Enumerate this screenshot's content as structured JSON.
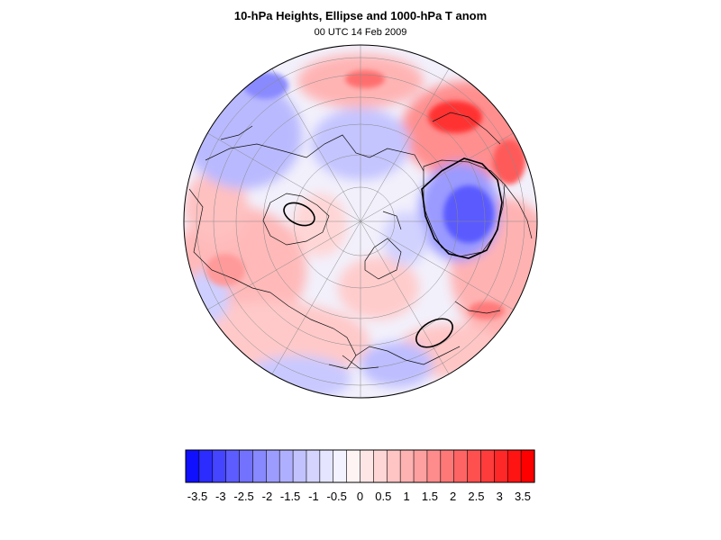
{
  "figure": {
    "title": "10-hPa Heights, Ellipse and 1000-hPa T anom",
    "subtitle": "00 UTC 14 Feb 2009"
  },
  "map": {
    "projection": "orthographic-polar",
    "hemisphere": "north",
    "field": "1000-hPa T anom",
    "features": [
      "temperature-anomaly-shading",
      "coastlines",
      "lat-lon-grid",
      "ellipse-contours"
    ]
  },
  "colorbar": {
    "levels": [
      -3.75,
      -3.5,
      -3.25,
      -3,
      -2.75,
      -2.5,
      -2.25,
      -2,
      -1.75,
      -1.5,
      -1.25,
      -1,
      -0.75,
      -0.5,
      -0.25,
      0,
      0.25,
      0.5,
      0.75,
      1,
      1.25,
      1.5,
      1.75,
      2,
      2.25,
      2.5,
      2.75,
      3,
      3.25,
      3.5,
      3.75
    ],
    "tick_labels": [
      "-3.5",
      "-3",
      "-2.5",
      "-2",
      "-1.5",
      "-1",
      "-0.5",
      "0",
      "0.5",
      "1",
      "1.5",
      "2",
      "2.5",
      "3",
      "3.5"
    ],
    "colors": [
      "#1010ff",
      "#2c2cff",
      "#4545ff",
      "#5c5cff",
      "#7272ff",
      "#8888ff",
      "#9c9cff",
      "#afafff",
      "#c2c2ff",
      "#d4d4ff",
      "#e5e5ff",
      "#f3f3ff",
      "#fff4f4",
      "#ffe6e6",
      "#ffd6d6",
      "#ffc4c4",
      "#ffb2b2",
      "#ffa0a0",
      "#ff8c8c",
      "#ff7878",
      "#ff6464",
      "#ff5050",
      "#ff3c3c",
      "#ff2828",
      "#ff1414",
      "#ff0000"
    ]
  }
}
